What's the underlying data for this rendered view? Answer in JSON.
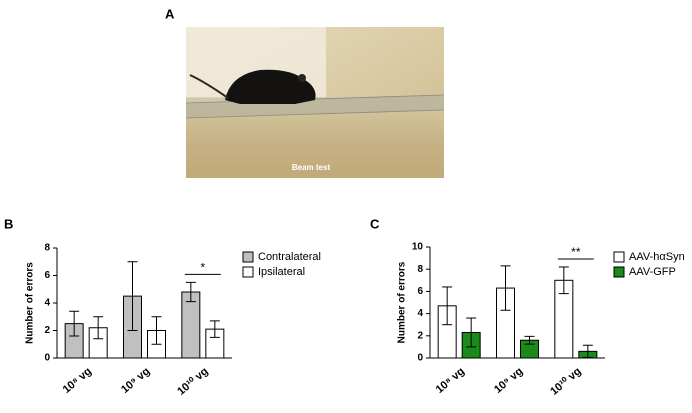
{
  "panel_labels": [
    "A",
    "B",
    "C"
  ],
  "photo_caption": "Beam test",
  "chart_data": [
    {
      "type": "bar",
      "y_label": "Number of errors",
      "categories": [
        "10⁸ vg",
        "10⁹ vg",
        "10¹⁰ vg"
      ],
      "series": [
        {
          "name": "Contralateral",
          "color": "#c0c0c0",
          "values": [
            2.5,
            4.5,
            4.8
          ],
          "errors": [
            0.9,
            2.5,
            0.7
          ]
        },
        {
          "name": "Ipsilateral",
          "color": "#ffffff",
          "values": [
            2.2,
            2.0,
            2.1
          ],
          "errors": [
            0.8,
            1.0,
            0.6
          ]
        }
      ],
      "ylim": [
        0,
        8
      ],
      "yticks": [
        0,
        2,
        4,
        6,
        8
      ],
      "annotation": "*"
    },
    {
      "type": "bar",
      "y_label": "Number of errors",
      "categories": [
        "10⁸ vg",
        "10⁹ vg",
        "10¹⁰ vg"
      ],
      "series": [
        {
          "name": "AAV-hαSyn",
          "color": "#ffffff",
          "values": [
            4.7,
            6.3,
            7.0
          ],
          "errors": [
            1.7,
            2.0,
            1.2
          ]
        },
        {
          "name": "AAV-GFP",
          "color": "#1a8a1a",
          "values": [
            2.3,
            1.6,
            0.6
          ],
          "errors": [
            1.3,
            0.35,
            0.55
          ]
        }
      ],
      "ylim": [
        0,
        10
      ],
      "yticks": [
        0,
        2,
        4,
        6,
        8,
        10
      ],
      "annotation": "**"
    }
  ]
}
